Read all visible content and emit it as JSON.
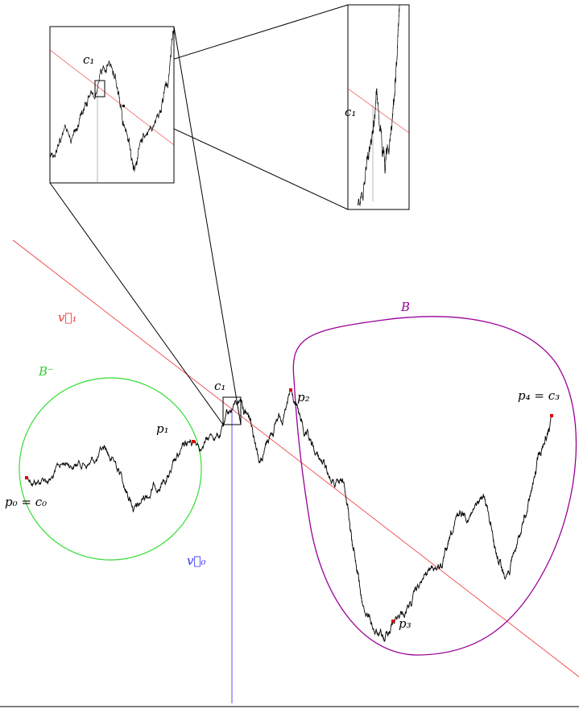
{
  "labels": {
    "inset_c1": "c₁",
    "zoom_c1": "c₁",
    "v1": "v⃗₁",
    "b_minus": "B⁻",
    "b": "B",
    "c1": "c₁",
    "p1": "p₁",
    "p2": "p₂",
    "p0": "p₀ = c₀",
    "v0": "v⃗₀",
    "p3": "p₃",
    "p4": "p₄ = c₃"
  }
}
